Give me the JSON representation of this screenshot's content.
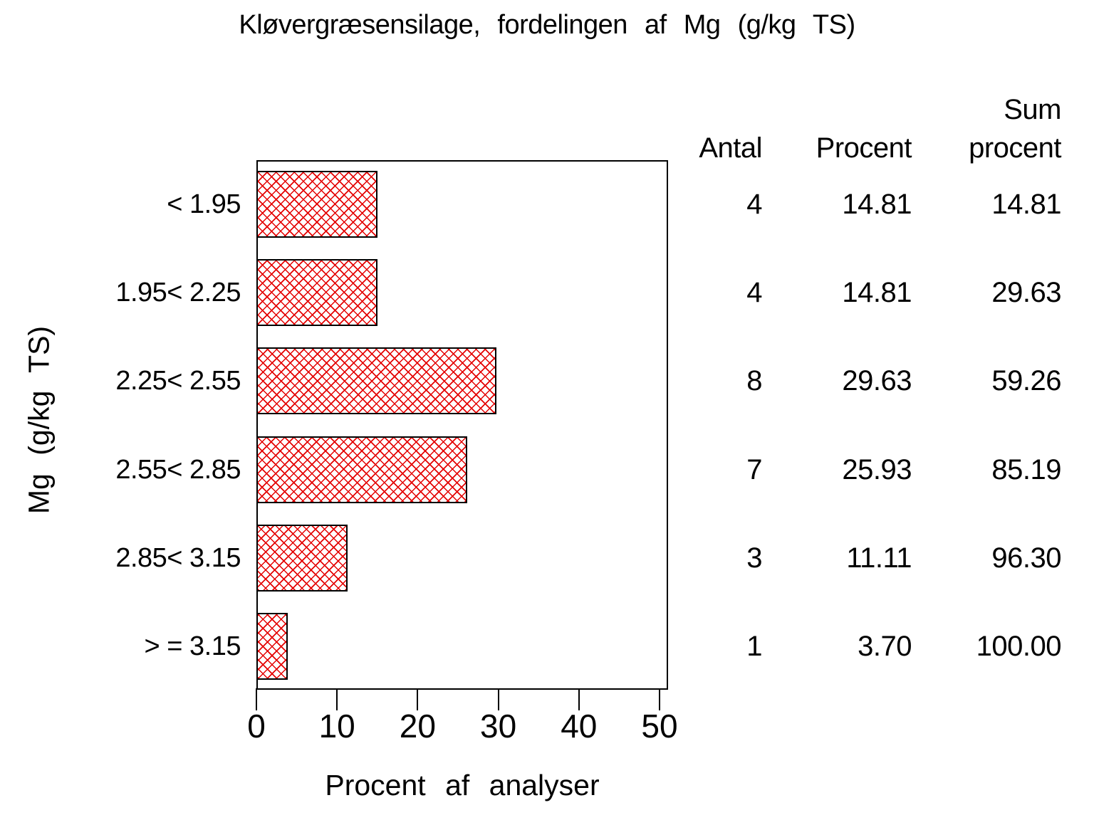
{
  "title": "Kløvergræsensilage, fordelingen af Mg (g/kg TS)",
  "colors": {
    "background": "#ffffff",
    "text": "#000000",
    "axis": "#000000",
    "bar_hatch": "#e40000",
    "bar_border": "#000000",
    "bar_fill": "#ffffff"
  },
  "chart_data": {
    "type": "bar",
    "orientation": "horizontal",
    "title": "Kløvergræsensilage, fordelingen af Mg (g/kg TS)",
    "xlabel": "Procent af analyser",
    "ylabel": "Mg (g/kg TS)",
    "xlim": [
      0,
      50
    ],
    "xticks": [
      "0",
      "10",
      "20",
      "30",
      "40",
      "50"
    ],
    "grid": false,
    "bar_style": "red diagonal crosshatch, black outline",
    "categories": [
      "< 1.95",
      "1.95< 2.25",
      "2.25< 2.55",
      "2.55< 2.85",
      "2.85< 3.15",
      "> = 3.15"
    ],
    "values": [
      14.81,
      14.81,
      29.63,
      25.93,
      11.11,
      3.7
    ],
    "table": {
      "header_line1": [
        "",
        "",
        "Sum"
      ],
      "header_line2": [
        "Antal",
        "Procent",
        "procent"
      ],
      "columns": [
        "Antal",
        "Procent",
        "Sum procent"
      ],
      "rows": [
        {
          "antal": "4",
          "procent": "14.81",
          "sum_procent": "14.81"
        },
        {
          "antal": "4",
          "procent": "14.81",
          "sum_procent": "29.63"
        },
        {
          "antal": "8",
          "procent": "29.63",
          "sum_procent": "59.26"
        },
        {
          "antal": "7",
          "procent": "25.93",
          "sum_procent": "85.19"
        },
        {
          "antal": "3",
          "procent": "11.11",
          "sum_procent": "96.30"
        },
        {
          "antal": "1",
          "procent": "3.70",
          "sum_procent": "100.00"
        }
      ]
    }
  }
}
